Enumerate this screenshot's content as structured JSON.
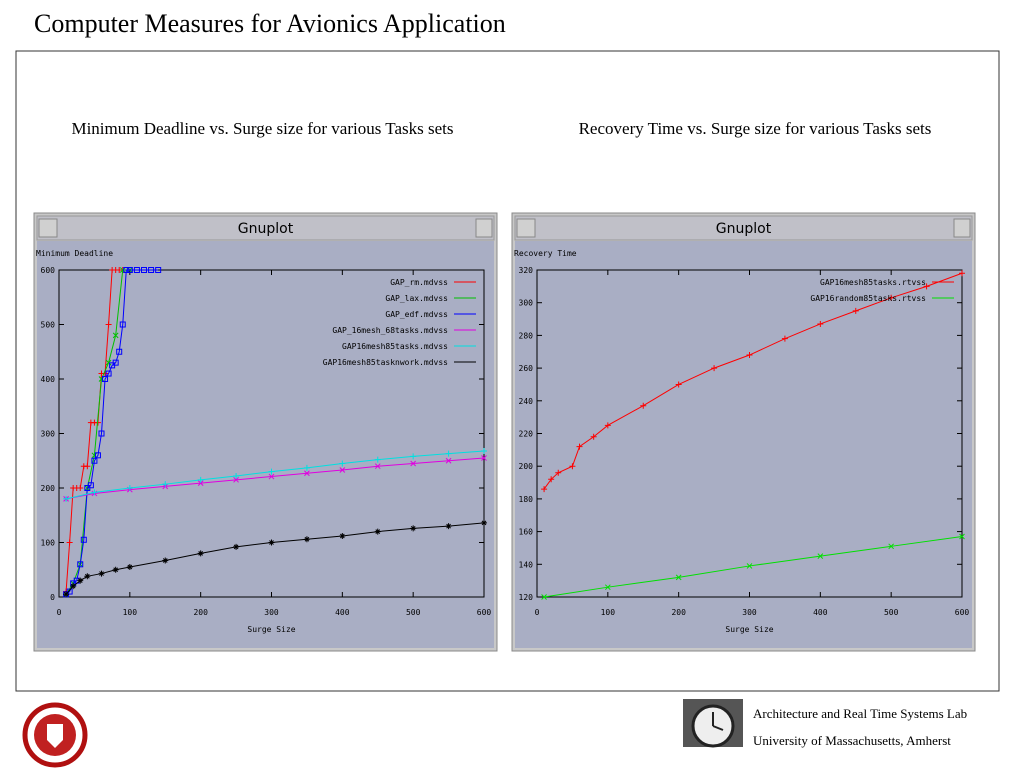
{
  "title": "Computer Measures for Avionics Application",
  "captions": [
    "Minimum Deadline vs. Surge size for various Tasks sets",
    "Recovery Time vs. Surge size for various Tasks sets"
  ],
  "footer": [
    "Architecture and Real Time Systems Lab",
    "University of Massachusetts, Amherst"
  ],
  "chart_data": [
    {
      "type": "line",
      "window_title": "Gnuplot",
      "ylabel": "Minimum Deadline",
      "xlabel": "Surge Size",
      "xlim": [
        0,
        600
      ],
      "xticks": [
        0,
        100,
        200,
        300,
        400,
        500,
        600
      ],
      "ylim": [
        0,
        600
      ],
      "yticks": [
        0,
        100,
        200,
        300,
        400,
        500,
        600
      ],
      "legend": "upper right",
      "series": [
        {
          "name": "GAP_rm.mdvss",
          "color": "#ff0000",
          "marker": "plus",
          "x": [
            10,
            15,
            20,
            25,
            30,
            35,
            40,
            45,
            50,
            55,
            60,
            65,
            70,
            75,
            80,
            85,
            90
          ],
          "values": [
            10,
            100,
            200,
            200,
            200,
            240,
            240,
            320,
            320,
            320,
            410,
            410,
            500,
            600,
            600,
            600,
            600
          ]
        },
        {
          "name": "GAP_lax.mdvss",
          "color": "#00c000",
          "marker": "x",
          "x": [
            10,
            20,
            30,
            40,
            50,
            60,
            70,
            80,
            90,
            100
          ],
          "values": [
            5,
            25,
            60,
            200,
            260,
            400,
            430,
            480,
            600,
            600
          ]
        },
        {
          "name": "GAP_edf.mdvss",
          "color": "#0000ff",
          "marker": "square",
          "x": [
            10,
            15,
            20,
            25,
            30,
            35,
            40,
            45,
            50,
            55,
            60,
            65,
            70,
            75,
            80,
            85,
            90,
            95,
            100,
            110,
            120,
            130,
            140
          ],
          "values": [
            5,
            10,
            25,
            30,
            60,
            105,
            200,
            205,
            250,
            260,
            300,
            400,
            410,
            425,
            430,
            450,
            500,
            600,
            600,
            600,
            600,
            600,
            600
          ]
        },
        {
          "name": "GAP_16mesh_68tasks.mdvss",
          "color": "#e000e0",
          "marker": "x",
          "x": [
            10,
            50,
            100,
            150,
            200,
            250,
            300,
            350,
            400,
            450,
            500,
            550,
            600
          ],
          "values": [
            180,
            190,
            197,
            203,
            209,
            215,
            221,
            227,
            233,
            240,
            245,
            250,
            255
          ]
        },
        {
          "name": "GAP16mesh85tasks.mdvss",
          "color": "#00e0e0",
          "marker": "plus",
          "x": [
            10,
            50,
            100,
            150,
            200,
            250,
            300,
            350,
            400,
            450,
            500,
            550,
            600
          ],
          "values": [
            180,
            192,
            200,
            207,
            215,
            222,
            230,
            237,
            245,
            252,
            258,
            263,
            268
          ]
        },
        {
          "name": "GAP16mesh85tasknwork.mdvss",
          "color": "#000000",
          "marker": "star",
          "x": [
            10,
            20,
            30,
            40,
            60,
            80,
            100,
            150,
            200,
            250,
            300,
            350,
            400,
            450,
            500,
            550,
            600
          ],
          "values": [
            5,
            20,
            30,
            38,
            43,
            50,
            55,
            67,
            80,
            92,
            100,
            106,
            112,
            120,
            126,
            130,
            136
          ]
        }
      ]
    },
    {
      "type": "line",
      "window_title": "Gnuplot",
      "ylabel": "Recovery Time",
      "xlabel": "Surge Size",
      "xlim": [
        0,
        600
      ],
      "xticks": [
        0,
        100,
        200,
        300,
        400,
        500,
        600
      ],
      "ylim": [
        120,
        320
      ],
      "yticks": [
        120,
        140,
        160,
        180,
        200,
        220,
        240,
        260,
        280,
        300,
        320
      ],
      "legend": "upper right",
      "series": [
        {
          "name": "GAP16mesh85tasks.rtvss",
          "color": "#ff0000",
          "marker": "plus",
          "x": [
            10,
            20,
            30,
            50,
            60,
            80,
            100,
            150,
            200,
            250,
            300,
            350,
            400,
            450,
            500,
            550,
            600
          ],
          "values": [
            186,
            192,
            196,
            200,
            212,
            218,
            225,
            237,
            250,
            260,
            268,
            278,
            287,
            295,
            303,
            310,
            318
          ]
        },
        {
          "name": "GAP16random85tasks.rtvss",
          "color": "#00e000",
          "marker": "x",
          "x": [
            10,
            100,
            200,
            300,
            400,
            500,
            600
          ],
          "values": [
            120,
            126,
            132,
            139,
            145,
            151,
            157
          ]
        }
      ]
    }
  ]
}
